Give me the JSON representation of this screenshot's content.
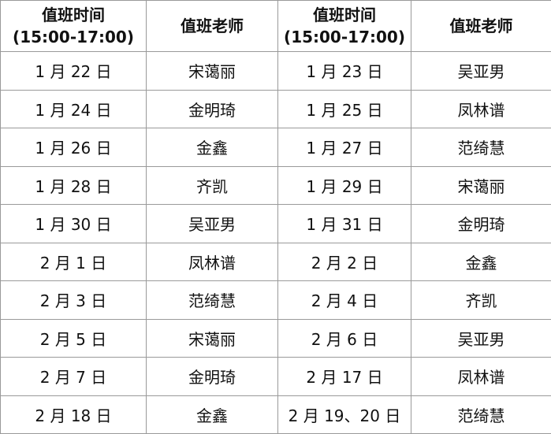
{
  "table": {
    "header": [
      "值班时间\n(15:00-17:00)",
      "值班老师",
      "值班时间\n(15:00-17:00)",
      "值班老师"
    ],
    "rows": [
      [
        "1 月 22 日",
        "宋蔼丽",
        "1 月 23 日",
        "吴亚男"
      ],
      [
        "1 月 24 日",
        "金明琦",
        "1 月 25 日",
        "凤林谱"
      ],
      [
        "1 月 26 日",
        "金鑫",
        "1 月 27 日",
        "范绮慧"
      ],
      [
        "1 月 28 日",
        "齐凯",
        "1 月 29 日",
        "宋蔼丽"
      ],
      [
        "1 月 30 日",
        "吴亚男",
        "1 月 31 日",
        "金明琦"
      ],
      [
        "2 月 1 日",
        "凤林谱",
        "2 月 2 日",
        "金鑫"
      ],
      [
        "2 月 3 日",
        "范绮慧",
        "2 月 4 日",
        "齐凯"
      ],
      [
        "2 月 5 日",
        "宋蔼丽",
        "2 月 6 日",
        "吴亚男"
      ],
      [
        "2 月 7 日",
        "金明琦",
        "2 月 17 日",
        "凤林谱"
      ],
      [
        "2 月 18 日",
        "金鑫",
        "2 月 19、20 日",
        "范绮慧"
      ]
    ]
  }
}
